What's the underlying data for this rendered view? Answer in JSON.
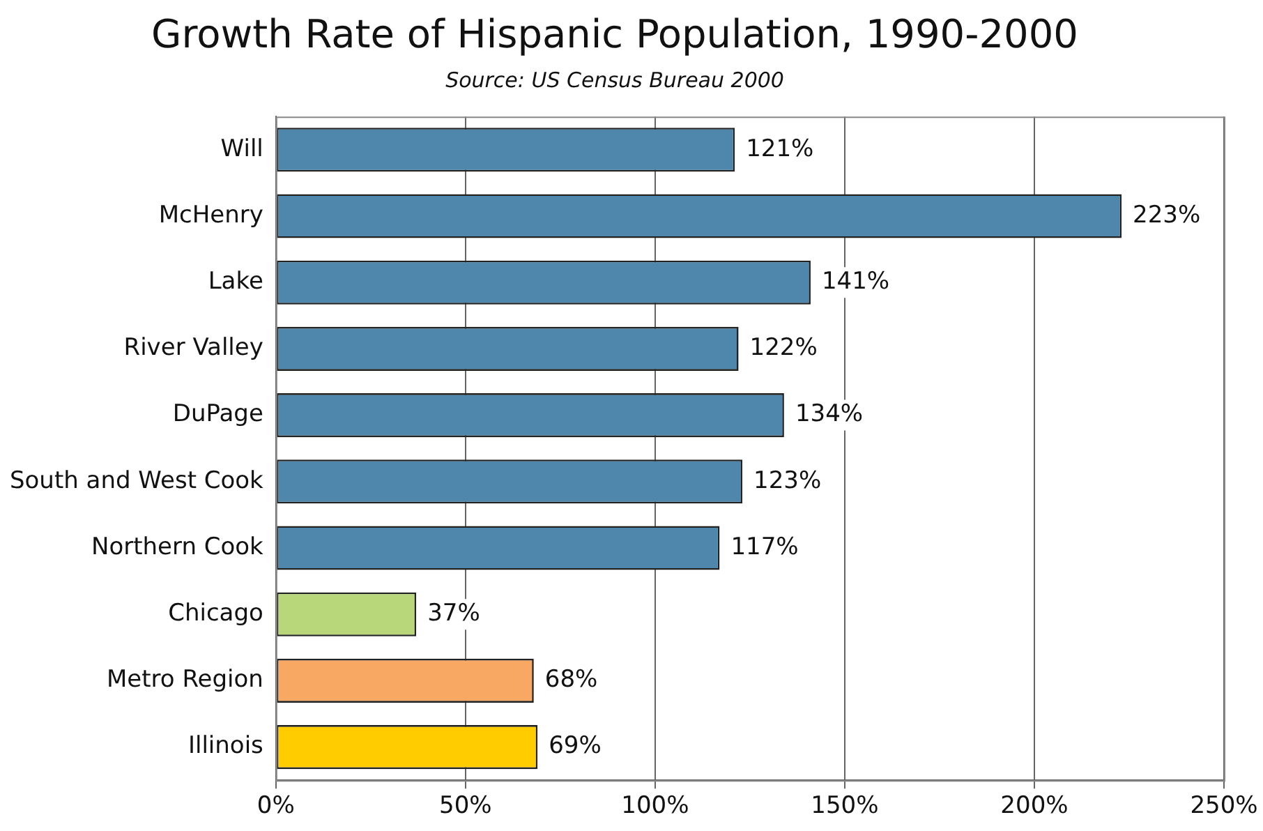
{
  "chart_data": {
    "type": "bar",
    "orientation": "horizontal",
    "title": "Growth Rate of Hispanic Population, 1990-2000",
    "subtitle": "Source: US Census Bureau 2000",
    "categories": [
      "Will",
      "McHenry",
      "Lake",
      "River Valley",
      "DuPage",
      "South and West Cook",
      "Northern Cook",
      "Chicago",
      "Metro Region",
      "Illinois"
    ],
    "values": [
      121,
      223,
      141,
      122,
      134,
      123,
      117,
      37,
      68,
      69
    ],
    "colors": [
      "#4e87ab",
      "#4e87ab",
      "#4e87ab",
      "#4e87ab",
      "#4e87ab",
      "#4e87ab",
      "#4e87ab",
      "#b8d77a",
      "#f8a862",
      "#ffcc00"
    ],
    "value_labels": [
      "121%",
      "223%",
      "141%",
      "122%",
      "134%",
      "123%",
      "117%",
      "37%",
      "68%",
      "69%"
    ],
    "xlim": [
      0,
      250
    ],
    "xticks": [
      {
        "value": 0,
        "label": "0%"
      },
      {
        "value": 50,
        "label": "50%"
      },
      {
        "value": 100,
        "label": "100%"
      },
      {
        "value": 150,
        "label": "150%"
      },
      {
        "value": 200,
        "label": "200%"
      },
      {
        "value": 250,
        "label": "250%"
      }
    ],
    "grid": "x",
    "legend": false
  }
}
